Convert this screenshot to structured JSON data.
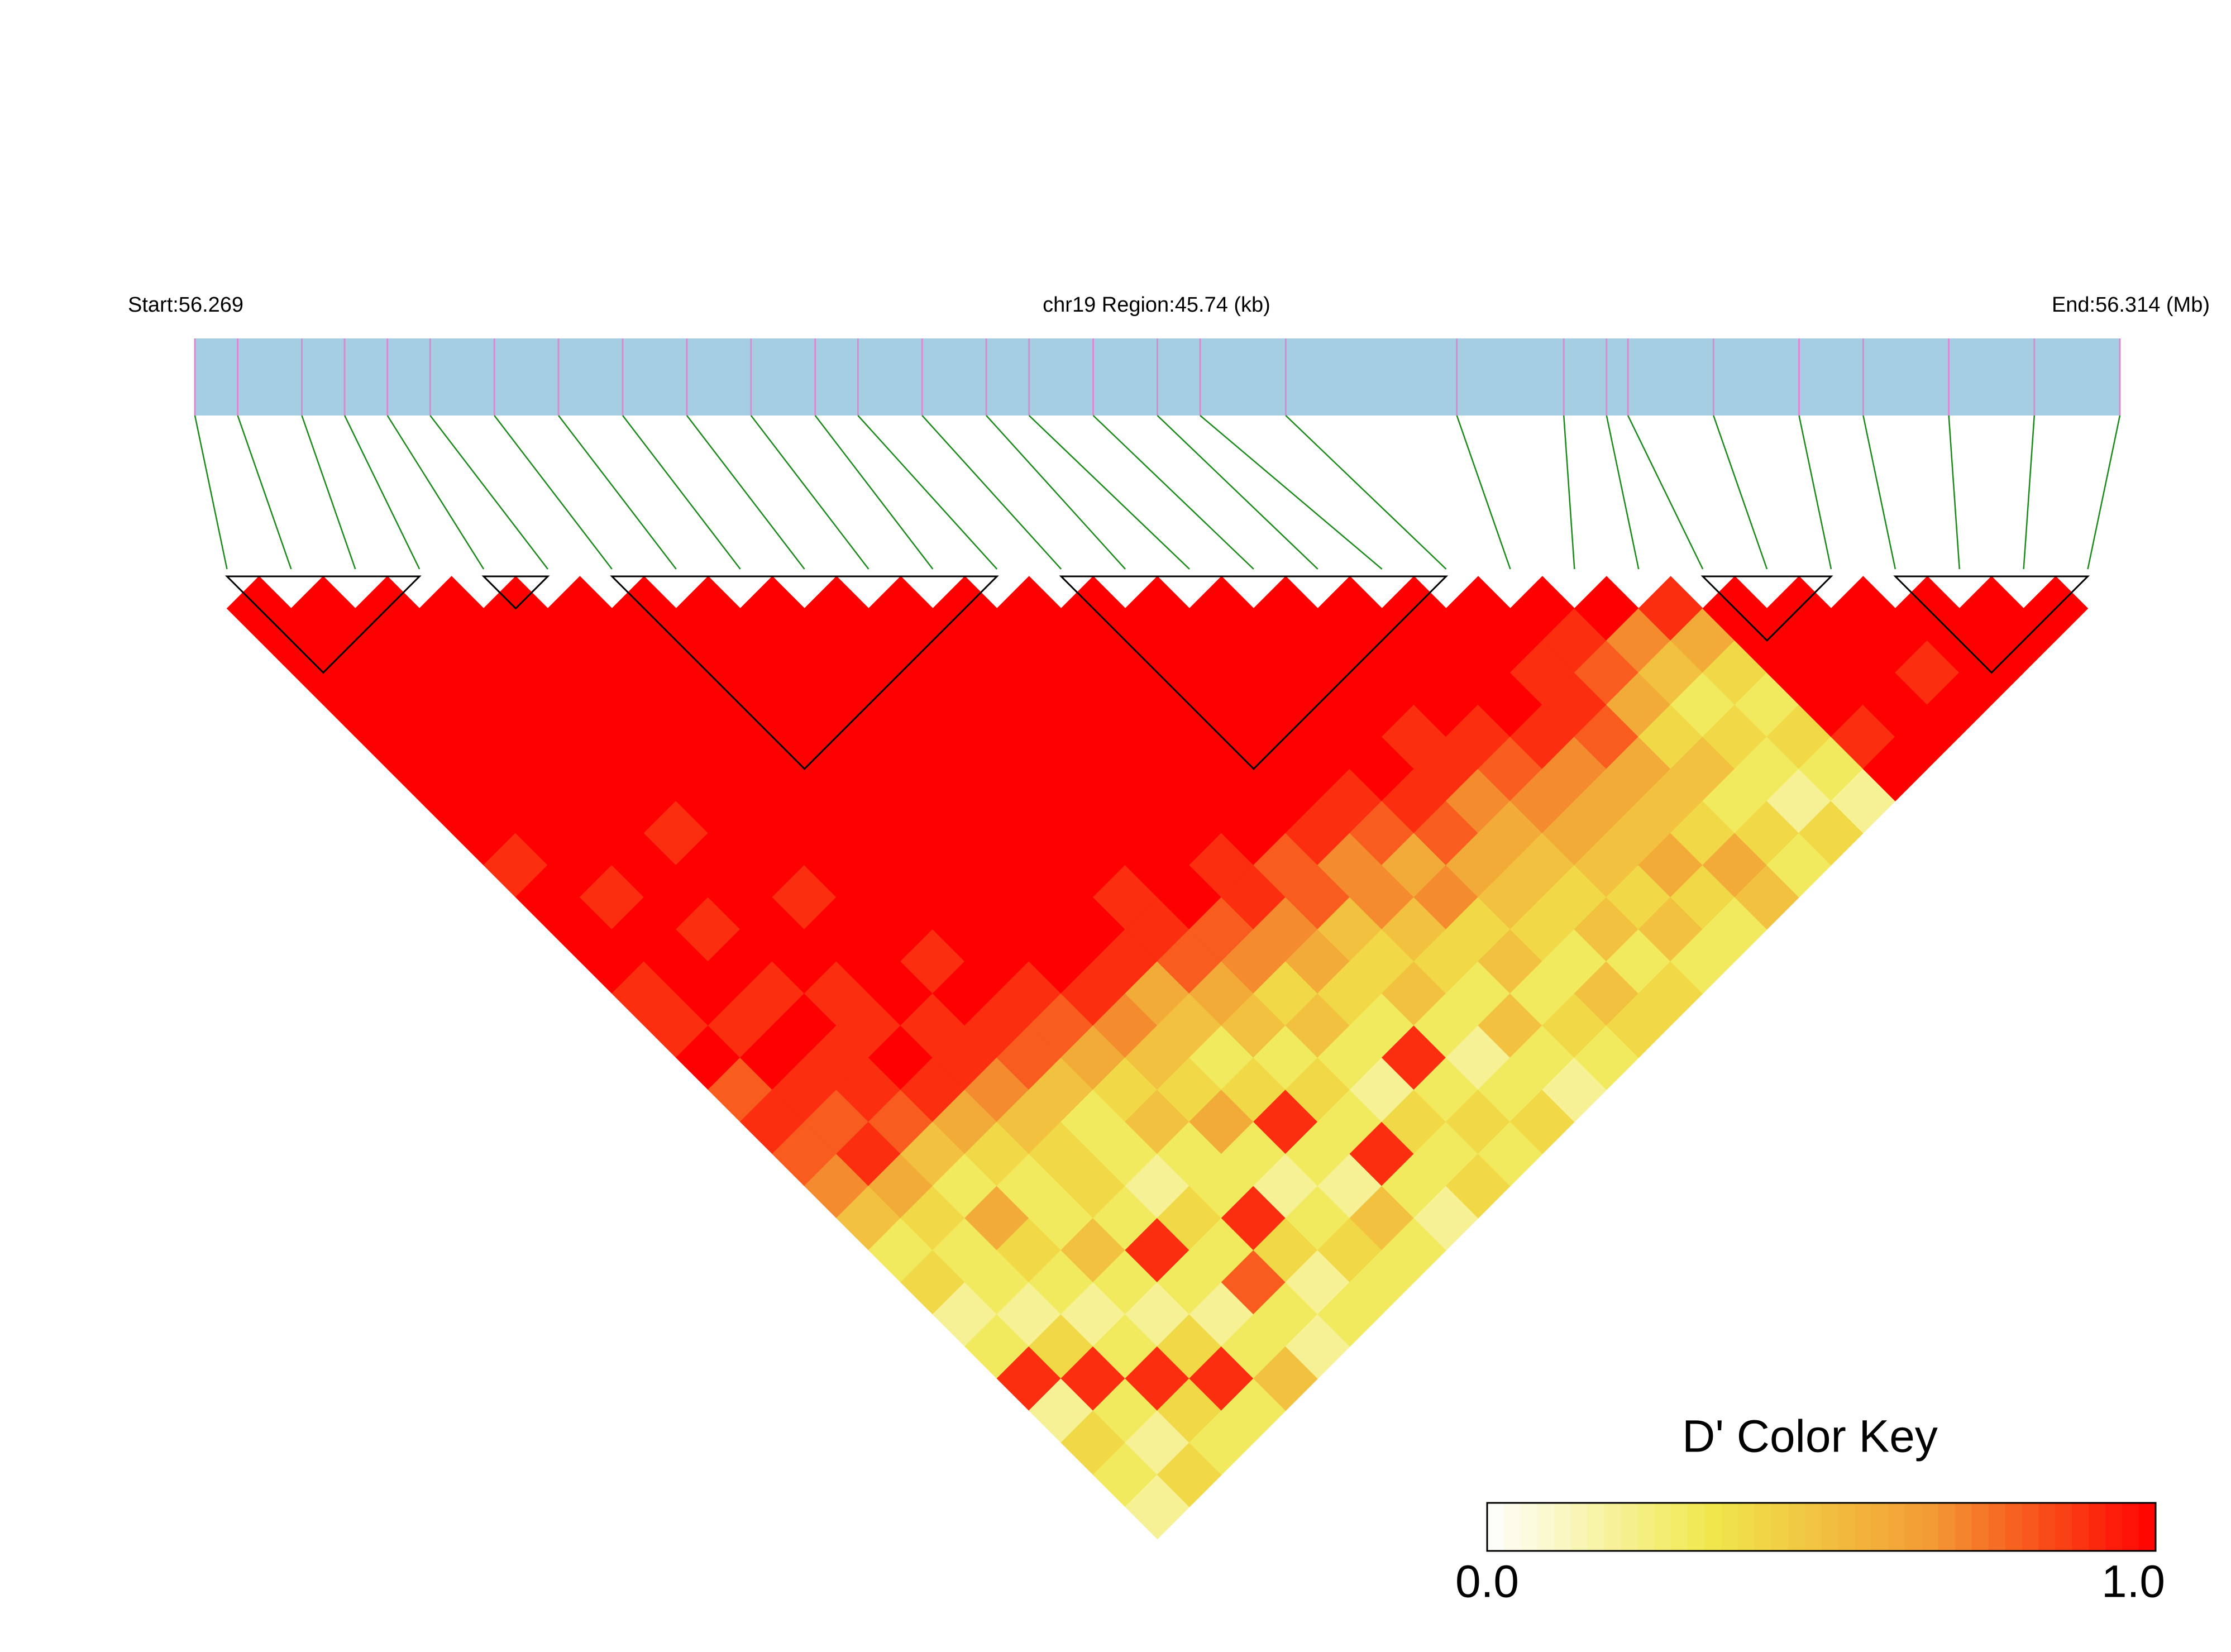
{
  "chart_data": {
    "type": "ld-heatmap",
    "title": "chr19 Region:45.74 (kb)",
    "xlim": [
      56.269,
      56.314
    ],
    "xticks": [
      {
        "value": 56.269,
        "label": "Start:56.269"
      },
      {
        "value": 56.314,
        "label": "End:56.314 (Mb)"
      }
    ],
    "positions": [
      56.269,
      56.27,
      56.2715,
      56.2725,
      56.2735,
      56.2745,
      56.276,
      56.2775,
      56.279,
      56.2805,
      56.282,
      56.2835,
      56.2845,
      56.286,
      56.2875,
      56.2885,
      56.29,
      56.2915,
      56.2925,
      56.2945,
      56.2985,
      56.301,
      56.302,
      56.3025,
      56.3045,
      56.3065,
      56.308,
      56.31,
      56.312,
      56.314
    ],
    "track_color": "#a6cee3",
    "snp_tick_color": "#d98ad0",
    "connector_color": "#1a8a1a",
    "ld": [
      [
        1,
        1,
        1,
        1,
        1,
        1,
        1,
        1,
        0.9,
        1,
        1,
        1,
        0.9,
        0.9,
        1,
        0.8,
        0.9,
        0.8,
        0.7,
        0.5,
        0.3,
        0.4,
        0.2,
        0.3,
        0.9,
        0.2,
        0.4,
        0.3,
        0.2
      ],
      [
        1,
        1,
        1,
        1,
        1,
        1,
        1,
        1,
        1,
        0.9,
        1,
        1,
        1,
        0.9,
        1,
        0.9,
        0.8,
        0.9,
        0.6,
        0.4,
        0.3,
        0.3,
        0.2,
        0.4,
        0.9,
        0.3,
        0.2,
        0.4
      ],
      [
        1,
        1,
        1,
        1,
        1,
        1,
        1,
        1,
        1,
        1,
        0.9,
        1,
        0.9,
        1,
        0.9,
        0.9,
        0.8,
        0.5,
        0.3,
        0.6,
        0.4,
        0.3,
        0.2,
        0.3,
        0.9,
        0.4,
        0.3
      ],
      [
        1,
        1,
        1,
        1,
        1,
        1,
        1,
        0.9,
        1,
        1,
        1,
        1,
        0.9,
        0.9,
        1,
        0.9,
        0.6,
        0.4,
        0.3,
        0.3,
        0.5,
        0.3,
        0.2,
        0.4,
        0.9,
        0.3
      ],
      [
        1,
        1,
        1,
        1,
        1,
        1,
        1,
        1,
        1,
        0.9,
        1,
        1,
        1,
        0.9,
        0.9,
        0.7,
        0.5,
        0.4,
        0.4,
        0.3,
        0.9,
        0.3,
        0.2,
        0.3,
        0.5
      ],
      [
        1,
        1,
        1,
        1,
        1,
        1,
        1,
        1,
        1,
        1,
        1,
        0.9,
        1,
        0.9,
        0.8,
        0.5,
        0.3,
        0.3,
        0.2,
        0.4,
        0.3,
        0.8,
        0.3,
        0.2
      ],
      [
        1,
        1,
        1,
        1,
        1,
        1,
        1,
        1,
        1,
        1,
        1,
        1,
        0.9,
        0.8,
        0.6,
        0.4,
        0.5,
        0.3,
        0.3,
        0.9,
        0.4,
        0.2,
        0.3
      ],
      [
        1,
        1,
        1,
        1,
        1,
        1,
        1,
        1,
        1,
        1,
        1,
        1,
        0.9,
        0.7,
        0.5,
        0.4,
        0.6,
        0.3,
        0.2,
        0.3,
        0.4,
        0.3
      ],
      [
        1,
        1,
        1,
        1,
        1,
        1,
        1,
        1,
        1,
        1,
        1,
        0.9,
        0.6,
        0.5,
        0.3,
        0.4,
        0.9,
        0.3,
        0.2,
        0.5,
        0.3
      ],
      [
        1,
        1,
        1,
        1,
        1,
        1,
        1,
        1,
        1,
        0.9,
        0.9,
        0.8,
        0.6,
        0.5,
        0.3,
        0.4,
        0.3,
        0.9,
        0.3,
        0.2
      ],
      [
        1,
        1,
        1,
        1,
        1,
        1,
        1,
        1,
        1,
        1,
        0.8,
        0.7,
        0.4,
        0.5,
        0.3,
        0.2,
        0.4,
        0.3,
        0.4
      ],
      [
        1,
        1,
        1,
        1,
        1,
        1,
        1,
        1,
        0.9,
        0.9,
        0.7,
        0.6,
        0.4,
        0.3,
        0.9,
        0.3,
        0.4,
        0.3
      ],
      [
        1,
        1,
        1,
        1,
        1,
        1,
        1,
        1,
        0.8,
        0.8,
        0.5,
        0.4,
        0.5,
        0.3,
        0.2,
        0.3,
        0.4
      ],
      [
        1,
        1,
        1,
        1,
        1,
        1,
        1,
        0.9,
        0.7,
        0.7,
        0.5,
        0.4,
        0.3,
        0.5,
        0.3,
        0.2
      ],
      [
        1,
        1,
        1,
        1,
        1,
        1,
        0.9,
        0.8,
        0.6,
        0.7,
        0.4,
        0.5,
        0.3,
        0.4,
        0.3
      ],
      [
        1,
        1,
        1,
        1,
        1,
        1,
        0.9,
        0.8,
        0.6,
        0.5,
        0.4,
        0.3,
        0.5,
        0.4
      ],
      [
        1,
        1,
        1,
        1,
        0.9,
        0.9,
        0.7,
        0.6,
        0.5,
        0.4,
        0.5,
        0.3,
        0.4
      ],
      [
        1,
        1,
        1,
        1,
        0.9,
        0.8,
        0.7,
        0.6,
        0.5,
        0.4,
        0.5,
        0.3
      ],
      [
        1,
        1,
        1,
        1,
        0.9,
        0.7,
        0.6,
        0.5,
        0.6,
        0.4,
        0.3
      ],
      [
        1,
        1,
        0.9,
        0.9,
        0.8,
        0.6,
        0.5,
        0.4,
        0.6,
        0.5
      ],
      [
        1,
        0.9,
        0.8,
        0.6,
        0.4,
        0.5,
        0.3,
        0.4,
        0.3
      ],
      [
        1,
        0.7,
        0.5,
        0.3,
        0.4,
        0.3,
        0.2,
        0.4
      ],
      [
        0.9,
        0.6,
        0.4,
        0.3,
        0.4,
        0.3,
        0.2
      ],
      [
        1,
        1,
        1,
        1,
        0.9,
        1
      ],
      [
        1,
        1,
        1,
        1,
        1
      ],
      [
        1,
        1,
        0.9,
        1
      ],
      [
        1,
        1,
        1
      ],
      [
        1,
        1
      ],
      [
        1
      ]
    ],
    "blocks": [
      [
        0,
        3
      ],
      [
        4,
        5
      ],
      [
        6,
        12
      ],
      [
        13,
        19
      ],
      [
        23,
        25
      ],
      [
        26,
        29
      ]
    ],
    "colormap": [
      "#ffffff",
      "#f0e84c",
      "#f39a34",
      "#ff0000"
    ],
    "key_title": "D' Color Key",
    "key_ticks": [
      {
        "value": 0,
        "label": "0.0"
      },
      {
        "value": 1,
        "label": "1.0"
      }
    ]
  }
}
